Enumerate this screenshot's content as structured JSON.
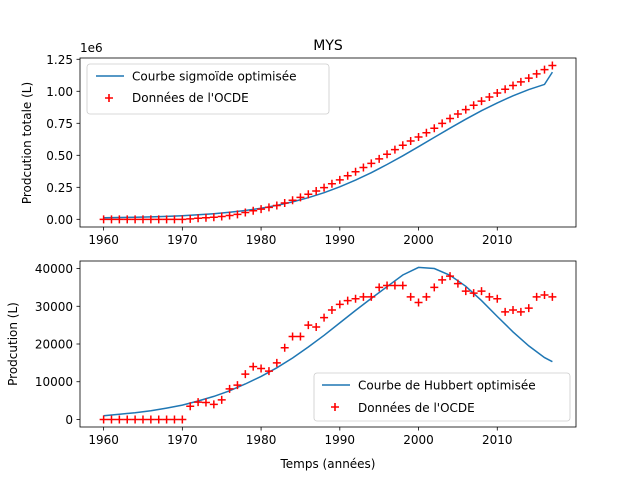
{
  "chart_data": [
    {
      "type": "line+scatter",
      "title": "MYS",
      "xlabel": "",
      "ylabel": "Prodcution totale (L)",
      "offset_text": "1e6",
      "xlim": [
        1957,
        2020
      ],
      "ylim": [
        -60000,
        1260000
      ],
      "xticks": [
        1960,
        1970,
        1980,
        1990,
        2000,
        2010
      ],
      "yticks": [
        0,
        250000,
        500000,
        750000,
        1000000,
        1250000
      ],
      "ytick_labels": [
        "0.00",
        "0.25",
        "0.50",
        "0.75",
        "1.00",
        "1.25"
      ],
      "legend": {
        "position": "upper-left"
      },
      "series": [
        {
          "name": "Courbe sigmoïde optimisée",
          "kind": "line",
          "color": "#1f77b4",
          "x": [
            1960,
            1962,
            1964,
            1966,
            1968,
            1970,
            1972,
            1974,
            1976,
            1978,
            1980,
            1982,
            1984,
            1986,
            1988,
            1990,
            1992,
            1994,
            1996,
            1998,
            2000,
            2002,
            2004,
            2006,
            2008,
            2010,
            2012,
            2014,
            2016,
            2017
          ],
          "y": [
            12000,
            14000,
            16000,
            19000,
            23000,
            28000,
            35000,
            44000,
            55000,
            69000,
            87000,
            109000,
            136000,
            169000,
            208000,
            254000,
            306000,
            364000,
            428000,
            496000,
            567000,
            640000,
            712000,
            782000,
            848000,
            909000,
            965000,
            1013000,
            1054000,
            1150000
          ]
        },
        {
          "name": "Données de l'OCDE",
          "kind": "scatter",
          "marker": "+",
          "color": "#ff0000",
          "x": [
            1960,
            1961,
            1962,
            1963,
            1964,
            1965,
            1966,
            1967,
            1968,
            1969,
            1970,
            1971,
            1972,
            1973,
            1974,
            1975,
            1976,
            1977,
            1978,
            1979,
            1980,
            1981,
            1982,
            1983,
            1984,
            1985,
            1986,
            1987,
            1988,
            1989,
            1990,
            1991,
            1992,
            1993,
            1994,
            1995,
            1996,
            1997,
            1998,
            1999,
            2000,
            2001,
            2002,
            2003,
            2004,
            2005,
            2006,
            2007,
            2008,
            2009,
            2010,
            2011,
            2012,
            2013,
            2014,
            2015,
            2016,
            2017
          ],
          "y": [
            0,
            0,
            0,
            0,
            0,
            0,
            0,
            0,
            0,
            0,
            0,
            3500,
            8000,
            12500,
            16500,
            22000,
            30000,
            39000,
            53000,
            67000,
            80000,
            93000,
            108000,
            127000,
            149000,
            171000,
            196000,
            221000,
            248000,
            278000,
            308000,
            340000,
            372000,
            405000,
            437000,
            472000,
            508000,
            544000,
            579000,
            612000,
            643000,
            676000,
            711000,
            749000,
            787000,
            823000,
            857000,
            891000,
            923000,
            955000,
            987000,
            1016000,
            1045000,
            1074000,
            1103000,
            1136000,
            1169000,
            1201000
          ]
        }
      ]
    },
    {
      "type": "line+scatter",
      "title": "",
      "xlabel": "Temps (années)",
      "ylabel": "Prodcution (L)",
      "xlim": [
        1957,
        2020
      ],
      "ylim": [
        -2000,
        42000
      ],
      "xticks": [
        1960,
        1970,
        1980,
        1990,
        2000,
        2010
      ],
      "yticks": [
        0,
        10000,
        20000,
        30000,
        40000
      ],
      "ytick_labels": [
        "0",
        "10000",
        "20000",
        "30000",
        "40000"
      ],
      "legend": {
        "position": "lower-right"
      },
      "series": [
        {
          "name": "Courbe de Hubbert optimisée",
          "kind": "line",
          "color": "#1f77b4",
          "x": [
            1960,
            1962,
            1964,
            1966,
            1968,
            1970,
            1972,
            1974,
            1976,
            1978,
            1980,
            1982,
            1984,
            1986,
            1988,
            1990,
            1992,
            1994,
            1996,
            1998,
            2000,
            2002,
            2004,
            2006,
            2008,
            2010,
            2012,
            2014,
            2016,
            2017
          ],
          "y": [
            1000,
            1400,
            1800,
            2300,
            3000,
            3800,
            4900,
            6100,
            7600,
            9400,
            11400,
            13700,
            16300,
            19200,
            22300,
            25600,
            28900,
            32100,
            35200,
            38300,
            40300,
            40000,
            38200,
            35300,
            31500,
            27300,
            23200,
            19500,
            16400,
            15300
          ]
        },
        {
          "name": "Données de l'OCDE",
          "kind": "scatter",
          "marker": "+",
          "color": "#ff0000",
          "x": [
            1960,
            1961,
            1962,
            1963,
            1964,
            1965,
            1966,
            1967,
            1968,
            1969,
            1970,
            1971,
            1972,
            1973,
            1974,
            1975,
            1976,
            1977,
            1978,
            1979,
            1980,
            1981,
            1982,
            1983,
            1984,
            1985,
            1986,
            1987,
            1988,
            1989,
            1990,
            1991,
            1992,
            1993,
            1994,
            1995,
            1996,
            1997,
            1998,
            1999,
            2000,
            2001,
            2002,
            2003,
            2004,
            2005,
            2006,
            2007,
            2008,
            2009,
            2010,
            2011,
            2012,
            2013,
            2014,
            2015,
            2016,
            2017
          ],
          "y": [
            0,
            0,
            0,
            0,
            0,
            0,
            0,
            0,
            0,
            0,
            0,
            3500,
            4600,
            4500,
            4000,
            5200,
            8100,
            9100,
            12000,
            14000,
            13500,
            12800,
            15000,
            19000,
            22000,
            22000,
            25000,
            24500,
            27000,
            29000,
            30500,
            31500,
            32000,
            32500,
            32500,
            35000,
            35500,
            35500,
            35500,
            32500,
            31000,
            32500,
            35000,
            37000,
            38000,
            36000,
            34000,
            33500,
            34000,
            32500,
            32000,
            28500,
            29000,
            28500,
            29500,
            32500,
            33000,
            32500
          ]
        }
      ]
    }
  ]
}
